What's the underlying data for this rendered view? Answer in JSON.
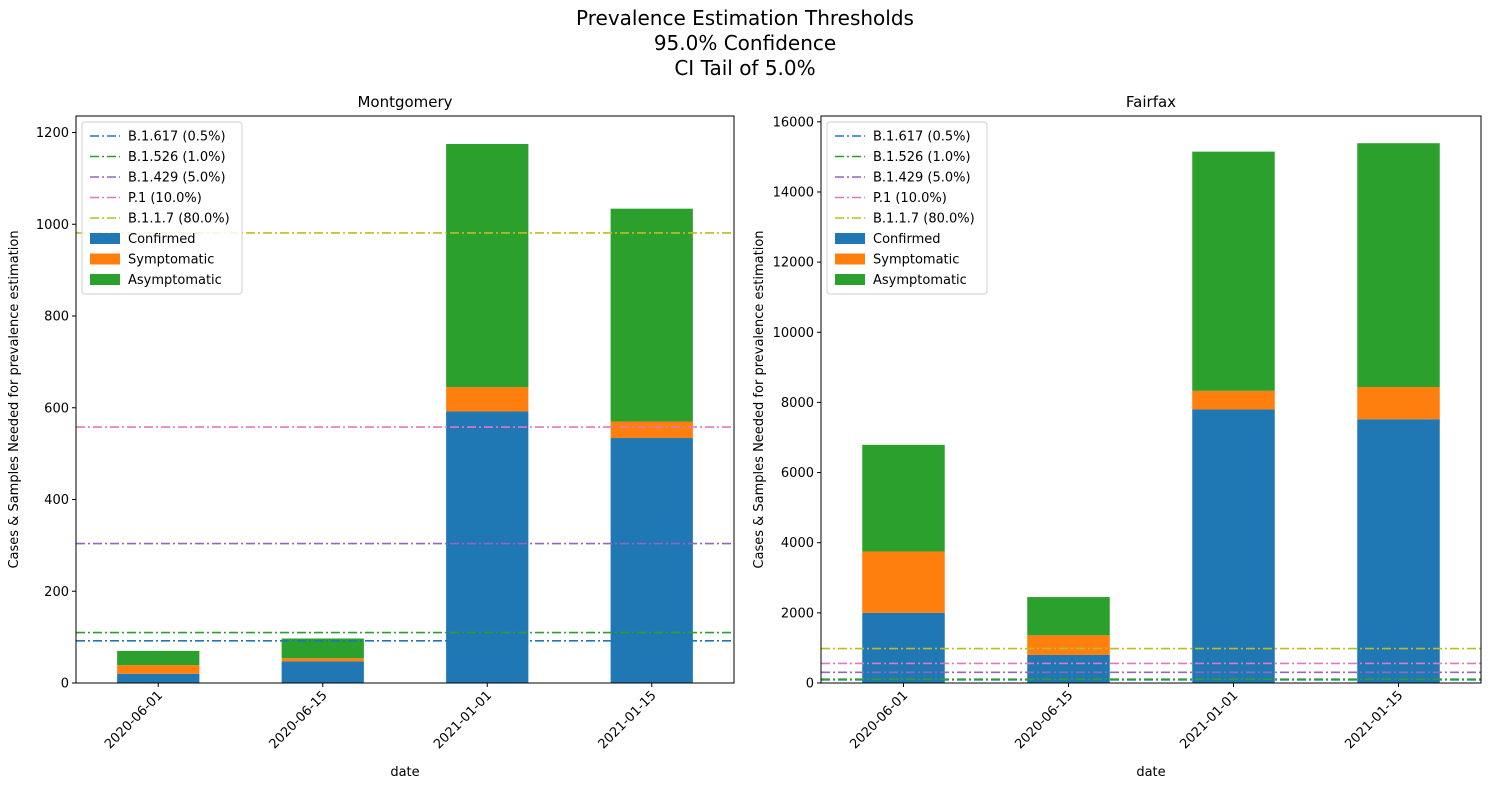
{
  "figure": {
    "title_lines": [
      "Prevalence Estimation Thresholds",
      "95.0% Confidence",
      "CI Tail of 5.0%"
    ]
  },
  "chart_data": [
    {
      "type": "bar",
      "stacked": true,
      "title": "Montgomery",
      "xlabel": "date",
      "ylabel": "Cases & Samples Needed for prevalence estimation",
      "categories": [
        "2020-06-01",
        "2020-06-15",
        "2021-01-01",
        "2021-01-15"
      ],
      "ylim": [
        0,
        1236
      ],
      "yticks": [
        0,
        200,
        400,
        600,
        800,
        1000,
        1200
      ],
      "yticklabels": [
        "0",
        "200",
        "400",
        "600",
        "800",
        "1000",
        "1200"
      ],
      "series": [
        {
          "name": "Confirmed",
          "color": "#1f77b4",
          "values": [
            20,
            47,
            592,
            534
          ]
        },
        {
          "name": "Symptomatic",
          "color": "#ff7f0e",
          "values": [
            19,
            7,
            53,
            36
          ]
        },
        {
          "name": "Asymptomatic",
          "color": "#2ca02c",
          "values": [
            31,
            43,
            530,
            464
          ]
        }
      ],
      "thresholds": [
        {
          "name": "B.1.617 (0.5%)",
          "color": "#1f77b4",
          "value": 92
        },
        {
          "name": "B.1.526 (1.0%)",
          "color": "#2ca02c",
          "value": 110
        },
        {
          "name": "B.1.429 (5.0%)",
          "color": "#9467bd",
          "value": 304
        },
        {
          "name": "P.1 (10.0%)",
          "color": "#e377c2",
          "value": 558
        },
        {
          "name": "B.1.1.7 (80.0%)",
          "color": "#bcbd22",
          "value": 981
        }
      ],
      "legend": "upper-left"
    },
    {
      "type": "bar",
      "stacked": true,
      "title": "Fairfax",
      "xlabel": "date",
      "ylabel": "Cases & Samples Needed for prevalence estimation",
      "categories": [
        "2020-06-01",
        "2020-06-15",
        "2021-01-01",
        "2021-01-15"
      ],
      "ylim": [
        0,
        16166
      ],
      "yticks": [
        0,
        2000,
        4000,
        6000,
        8000,
        10000,
        12000,
        14000,
        16000
      ],
      "yticklabels": [
        "0",
        "2000",
        "4000",
        "6000",
        "8000",
        "10000",
        "12000",
        "14000",
        "16000"
      ],
      "series": [
        {
          "name": "Confirmed",
          "color": "#1f77b4",
          "values": [
            2000,
            800,
            7800,
            7520
          ]
        },
        {
          "name": "Symptomatic",
          "color": "#ff7f0e",
          "values": [
            1750,
            560,
            530,
            920
          ]
        },
        {
          "name": "Asymptomatic",
          "color": "#2ca02c",
          "values": [
            3040,
            1090,
            6820,
            6950
          ]
        }
      ],
      "thresholds": [
        {
          "name": "B.1.617 (0.5%)",
          "color": "#1f77b4",
          "value": 92
        },
        {
          "name": "B.1.526 (1.0%)",
          "color": "#2ca02c",
          "value": 110
        },
        {
          "name": "B.1.429 (5.0%)",
          "color": "#9467bd",
          "value": 304
        },
        {
          "name": "P.1 (10.0%)",
          "color": "#e377c2",
          "value": 558
        },
        {
          "name": "B.1.1.7 (80.0%)",
          "color": "#bcbd22",
          "value": 981
        }
      ],
      "legend": "upper-left"
    }
  ]
}
